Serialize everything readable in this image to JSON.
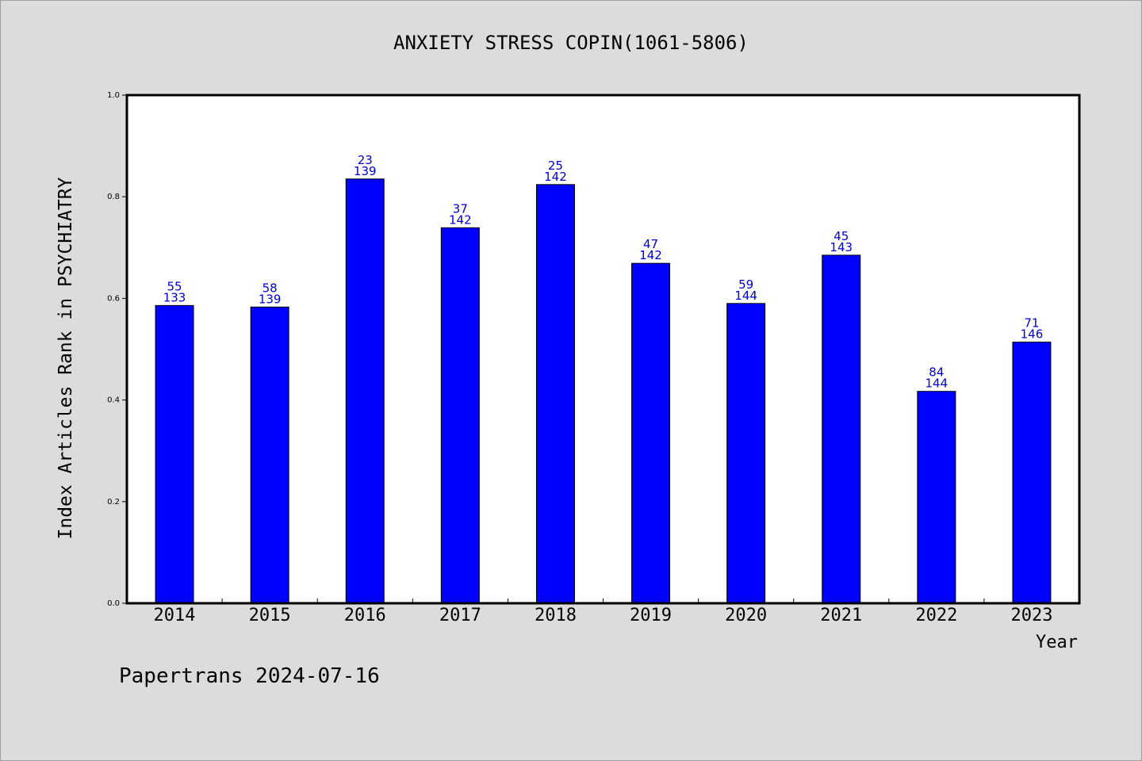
{
  "chart_data": {
    "type": "bar",
    "title": "ANXIETY STRESS COPIN(1061-5806)",
    "xlabel": "Year",
    "ylabel": "Index Articles Rank in PSYCHIATRY",
    "ylim": [
      0.0,
      1.0
    ],
    "yticks": [
      "0.0",
      "0.2",
      "0.4",
      "0.6",
      "0.8",
      "1.0"
    ],
    "grid": false,
    "categories": [
      "2014",
      "2015",
      "2016",
      "2017",
      "2018",
      "2019",
      "2020",
      "2021",
      "2022",
      "2023"
    ],
    "values": [
      0.586,
      0.583,
      0.835,
      0.739,
      0.824,
      0.669,
      0.59,
      0.685,
      0.417,
      0.514
    ],
    "rank": [
      "55",
      "58",
      "23",
      "37",
      "25",
      "47",
      "59",
      "45",
      "84",
      "71"
    ],
    "total": [
      "133",
      "139",
      "139",
      "142",
      "142",
      "142",
      "144",
      "143",
      "144",
      "146"
    ],
    "colors": {
      "bar": "#0000ff",
      "bar_edge": "#000000",
      "label": "#0000cc",
      "plot_bg": "#ffffff",
      "page_bg": "#dcdcdc"
    }
  },
  "footer": "Papertrans 2024-07-16"
}
